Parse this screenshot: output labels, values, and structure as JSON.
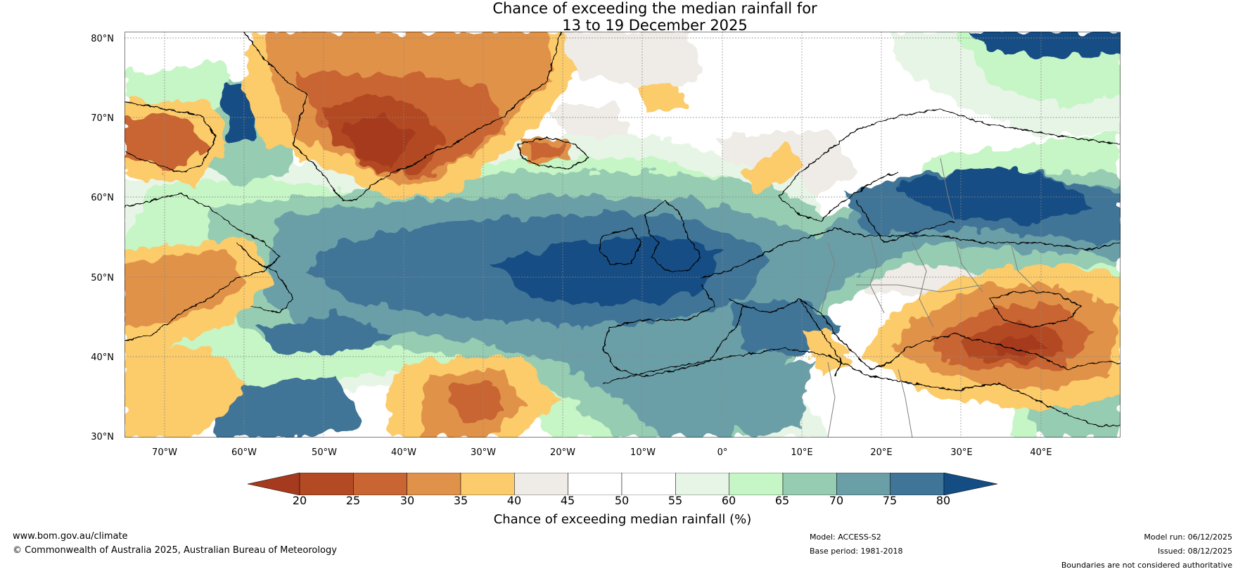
{
  "title": {
    "line1": "Chance of exceeding the median rainfall for",
    "line2": "13 to 19 December 2025"
  },
  "map": {
    "lat_labels": [
      "80°N",
      "70°N",
      "60°N",
      "50°N",
      "40°N",
      "30°N"
    ],
    "lon_labels": [
      "70°W",
      "60°W",
      "50°W",
      "40°W",
      "30°W",
      "20°W",
      "10°W",
      "0°",
      "10°E",
      "20°E",
      "30°E",
      "40°E"
    ],
    "lat_range": [
      30,
      80
    ],
    "lon_range": [
      -75,
      50
    ],
    "ocean_color": "#ffffff"
  },
  "colorbar": {
    "ticks": [
      "20",
      "25",
      "30",
      "35",
      "40",
      "45",
      "50",
      "55",
      "60",
      "65",
      "70",
      "75",
      "80"
    ],
    "under_color": "#a53a1f",
    "over_color": "#134d84",
    "bin_colors": [
      "#b24a24",
      "#c96532",
      "#e0924a",
      "#fccb6b",
      "#efebe6",
      "#ffffff",
      "#ffffff",
      "#e7f5e6",
      "#c6f5c6",
      "#96ccb2",
      "#6a9fa8",
      "#417597"
    ],
    "label": "Chance of exceeding median rainfall (%)"
  },
  "footer": {
    "website": "www.bom.gov.au/climate",
    "copyright": "© Commonwealth of Australia 2025, Australian Bureau of Meteorology",
    "model": "Model: ACCESS-S2",
    "base_period": "Base period: 1981-2018",
    "model_run": "Model run: 06/12/2025",
    "issued": "Issued: 08/12/2025",
    "disclaimer": "Boundaries are not considered authoritative"
  }
}
